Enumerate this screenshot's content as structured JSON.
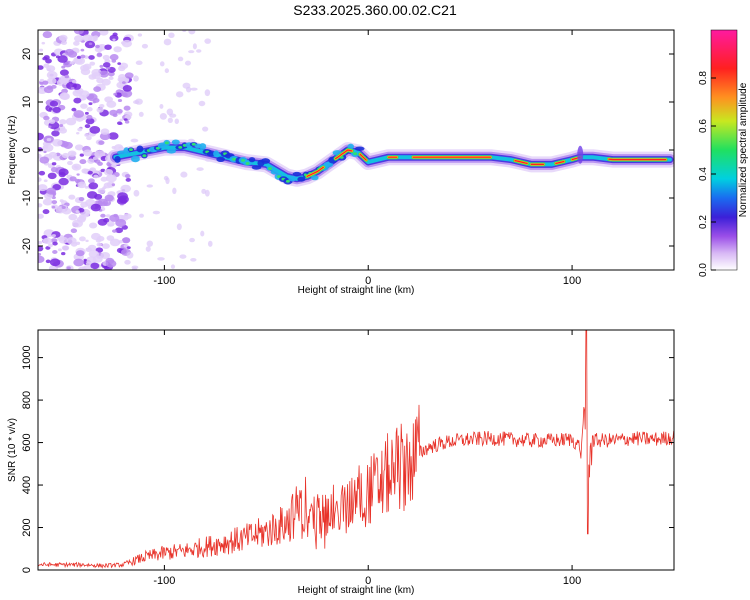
{
  "title": "S233.2025.360.00.02.C21",
  "colors": {
    "snr_line": "#e8332a",
    "axis": "#000000",
    "colorbar_stops": [
      "#ffffff",
      "#d8b8f5",
      "#9b4fe8",
      "#3b20d8",
      "#1a6cf0",
      "#00d0e0",
      "#20e060",
      "#c8e820",
      "#ff9020",
      "#ff2020",
      "#ff1aa0"
    ]
  },
  "chart_data": [
    {
      "type": "heatmap",
      "name": "spectrogram",
      "xlabel": "Height of straight line (km)",
      "ylabel": "Frequency (Hz)",
      "xlim": [
        -162,
        150
      ],
      "ylim": [
        -25,
        25
      ],
      "xticks": [
        -100,
        0,
        100
      ],
      "xtick_labels": [
        "-100",
        "0",
        "100"
      ],
      "yticks": [
        20,
        10,
        0,
        -10,
        -20
      ],
      "ytick_labels": [
        "20",
        "10",
        "0",
        "-10",
        "-20"
      ],
      "ridge": {
        "x": [
          -124,
          -112,
          -100,
          -90,
          -80,
          -70,
          -60,
          -50,
          -40,
          -35,
          -30,
          -25,
          -20,
          -15,
          -10,
          -5,
          0,
          5,
          10,
          15,
          20,
          30,
          40,
          50,
          60,
          70,
          75,
          80,
          85,
          90,
          95,
          100,
          104,
          110,
          120,
          130,
          140,
          148
        ],
        "y": [
          -1.5,
          -0.5,
          0.5,
          0.5,
          -0.5,
          -1.5,
          -2.5,
          -3.0,
          -5.5,
          -6.0,
          -5.5,
          -4.5,
          -3.0,
          -1.5,
          0.0,
          -0.5,
          -2.5,
          -2.0,
          -1.5,
          -1.5,
          -1.5,
          -1.5,
          -1.5,
          -1.5,
          -1.5,
          -2.0,
          -2.5,
          -3.0,
          -3.0,
          -3.0,
          -2.5,
          -2.0,
          -1.5,
          -1.5,
          -2.0,
          -2.0,
          -2.0,
          -2.0
        ]
      },
      "colorbar": {
        "label": "Normalized spectral amplitude",
        "range": [
          0,
          1
        ],
        "ticks": [
          0.0,
          0.2,
          0.4,
          0.6,
          0.8
        ],
        "tick_labels": [
          "0.0",
          "0.2",
          "0.4",
          "0.6",
          "0.8"
        ]
      }
    },
    {
      "type": "line",
      "name": "snr",
      "xlabel": "Height of straight line (km)",
      "ylabel": "SNR (10 * v/v)",
      "xlim": [
        -162,
        150
      ],
      "ylim": [
        0,
        1130
      ],
      "xticks": [
        -100,
        0,
        100
      ],
      "xtick_labels": [
        "-100",
        "0",
        "100"
      ],
      "yticks": [
        0,
        200,
        400,
        600,
        800,
        1000
      ],
      "ytick_labels": [
        "0",
        "200",
        "400",
        "600",
        "800",
        "1000"
      ],
      "series": [
        {
          "name": "SNR",
          "x": [
            -162,
            -140,
            -130,
            -120,
            -110,
            -100,
            -90,
            -80,
            -70,
            -60,
            -50,
            -40,
            -35,
            -30,
            -20,
            -10,
            -5,
            0,
            5,
            10,
            20,
            30,
            40,
            50,
            60,
            70,
            80,
            90,
            100,
            104,
            106,
            107,
            108,
            110,
            120,
            130,
            140,
            150
          ],
          "y": [
            25,
            25,
            20,
            25,
            60,
            80,
            90,
            110,
            130,
            150,
            180,
            220,
            280,
            240,
            270,
            300,
            350,
            370,
            400,
            450,
            520,
            580,
            605,
            615,
            620,
            615,
            610,
            610,
            615,
            580,
            700,
            620,
            440,
            610,
            610,
            620,
            615,
            625
          ]
        }
      ],
      "spike_features": [
        {
          "x": 107,
          "peak": 1130,
          "trough": 170
        }
      ]
    }
  ]
}
